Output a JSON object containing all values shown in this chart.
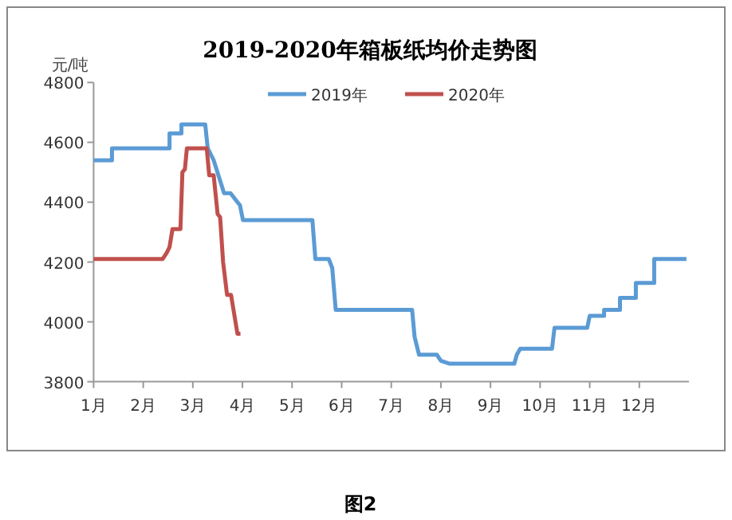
{
  "chart_data": {
    "type": "line",
    "title": "2019-2020年箱板纸均价走势图",
    "ylabel": "元/吨",
    "annotations": [
      "图2"
    ],
    "legend": "top",
    "xlim": [
      1,
      13
    ],
    "ylim": [
      3800,
      4800
    ],
    "yticks": [
      3800,
      4000,
      4200,
      4400,
      4600,
      4800
    ],
    "xticks": [
      {
        "value": 1,
        "label": "1月"
      },
      {
        "value": 2,
        "label": "2月"
      },
      {
        "value": 3,
        "label": "3月"
      },
      {
        "value": 4,
        "label": "4月"
      },
      {
        "value": 5,
        "label": "5月"
      },
      {
        "value": 6,
        "label": "6月"
      },
      {
        "value": 7,
        "label": "7月"
      },
      {
        "value": 8,
        "label": "8月"
      },
      {
        "value": 9,
        "label": "9月"
      },
      {
        "value": 10,
        "label": "10月"
      },
      {
        "value": 11,
        "label": "11月"
      },
      {
        "value": 12,
        "label": "12月"
      }
    ],
    "series": [
      {
        "name": "2019年",
        "color": "#5b9bd5",
        "x": [
          1,
          1.37,
          1.37,
          2.53,
          2.53,
          2.77,
          2.77,
          3.25,
          3.3,
          3.42,
          3.63,
          3.76,
          3.9,
          3.95,
          4.01,
          5.41,
          5.47,
          5.74,
          5.81,
          5.88,
          7.42,
          7.47,
          7.56,
          7.92,
          8.0,
          8.18,
          9.48,
          9.53,
          9.6,
          10.24,
          10.29,
          10.95,
          11.0,
          11.29,
          11.29,
          11.61,
          11.61,
          11.93,
          11.93,
          12.3,
          12.3,
          12.95
        ],
        "values": [
          4540,
          4540,
          4580,
          4580,
          4630,
          4630,
          4660,
          4660,
          4580,
          4540,
          4430,
          4430,
          4400,
          4390,
          4340,
          4340,
          4210,
          4210,
          4180,
          4040,
          4040,
          3950,
          3890,
          3890,
          3870,
          3860,
          3860,
          3890,
          3910,
          3910,
          3980,
          3980,
          4020,
          4020,
          4040,
          4040,
          4080,
          4080,
          4130,
          4130,
          4210,
          4210
        ]
      },
      {
        "name": "2020年",
        "color": "#c0504d",
        "x": [
          1,
          2.39,
          2.47,
          2.53,
          2.59,
          2.75,
          2.79,
          2.84,
          2.88,
          3.28,
          3.33,
          3.42,
          3.5,
          3.55,
          3.61,
          3.69,
          3.77,
          3.9,
          3.96
        ],
        "values": [
          4210,
          4210,
          4230,
          4250,
          4310,
          4310,
          4500,
          4510,
          4580,
          4580,
          4490,
          4490,
          4360,
          4350,
          4200,
          4090,
          4090,
          3960,
          3960
        ]
      }
    ]
  }
}
